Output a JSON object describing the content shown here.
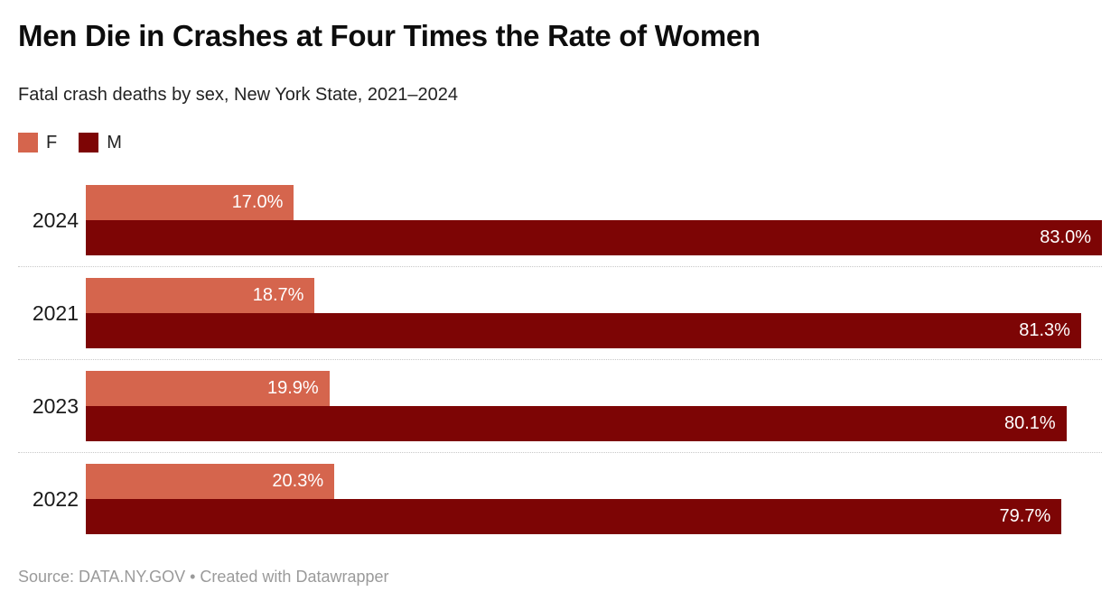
{
  "header": {
    "title": "Men Die in Crashes at Four Times the Rate of Women",
    "subtitle": "Fatal crash deaths by sex, New York State, 2021–2024"
  },
  "legend": [
    {
      "label": "F",
      "color": "#d5654d"
    },
    {
      "label": "M",
      "color": "#7d0505"
    }
  ],
  "chart_data": {
    "type": "bar",
    "orientation": "horizontal",
    "title": "Men Die in Crashes at Four Times the Rate of Women",
    "subtitle": "Fatal crash deaths by sex, New York State, 2021–2024",
    "categories": [
      "2024",
      "2021",
      "2023",
      "2022"
    ],
    "series": [
      {
        "name": "F",
        "color": "#d5654d",
        "values": [
          17.0,
          18.7,
          19.9,
          20.3
        ]
      },
      {
        "name": "M",
        "color": "#7d0505",
        "values": [
          83.0,
          81.3,
          80.1,
          79.7
        ]
      }
    ],
    "value_labels": [
      [
        "17.0%",
        "83.0%"
      ],
      [
        "18.7%",
        "81.3%"
      ],
      [
        "19.9%",
        "80.1%"
      ],
      [
        "20.3%",
        "79.7%"
      ]
    ],
    "unit": "%",
    "axis_max": 83.0,
    "xlabel": "",
    "ylabel": "",
    "grid": false,
    "legend_position": "top-left"
  },
  "footer": {
    "source_prefix": "Source: ",
    "source": "DATA.NY.GOV",
    "separator": " • ",
    "credit": "Created with Datawrapper"
  }
}
